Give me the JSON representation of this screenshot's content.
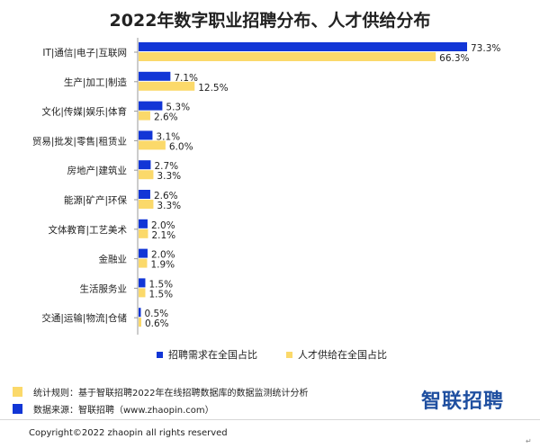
{
  "colors": {
    "demand": "#1236d6",
    "supply": "#fbd96a",
    "brand": "#1f4fa0"
  },
  "chart_data": {
    "type": "bar",
    "orientation": "horizontal",
    "title": "2022年数字职业招聘分布、人才供给分布",
    "categories": [
      "IT|通信|电子|互联网",
      "生产|加工|制造",
      "文化|传媒|娱乐|体育",
      "贸易|批发|零售|租赁业",
      "房地产|建筑业",
      "能源|矿产|环保",
      "文体教育|工艺美术",
      "金融业",
      "生活服务业",
      "交通|运输|物流|仓储"
    ],
    "series": [
      {
        "name": "招聘需求在全国占比",
        "values": [
          73.3,
          7.1,
          5.3,
          3.1,
          2.7,
          2.6,
          2.0,
          2.0,
          1.5,
          0.5
        ],
        "labels": [
          "73.3%",
          "7.1%",
          "5.3%",
          "3.1%",
          "2.7%",
          "2.6%",
          "2.0%",
          "2.0%",
          "1.5%",
          "0.5%"
        ]
      },
      {
        "name": "人才供给在全国占比",
        "values": [
          66.3,
          12.5,
          2.6,
          6.0,
          3.3,
          3.3,
          2.1,
          1.9,
          1.5,
          0.6
        ],
        "labels": [
          "66.3%",
          "12.5%",
          "2.6%",
          "6.0%",
          "3.3%",
          "3.3%",
          "2.1%",
          "1.9%",
          "1.5%",
          "0.6%"
        ]
      }
    ],
    "xlim": [
      0,
      80
    ],
    "legend_position": "bottom"
  },
  "notes": {
    "rule": "统计规则：基于智联招聘2022年在线招聘数据库的数据监测统计分析",
    "source": "数据来源：智联招聘（www.zhaopin.com）"
  },
  "brand": "智联招聘",
  "copyright": "Copyright©2022 zhaopin all rights reserved",
  "return_mark": "↵"
}
